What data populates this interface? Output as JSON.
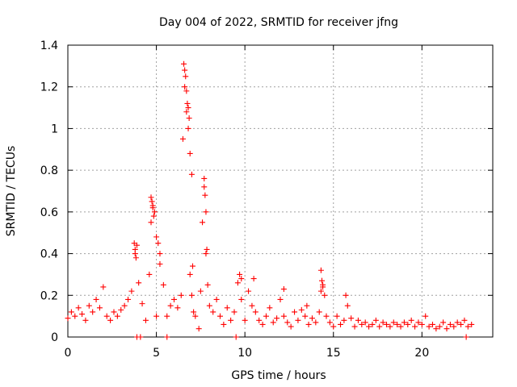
{
  "chart_data": {
    "type": "scatter",
    "title": "Day 004 of 2022, SRMTID for receiver jfng",
    "xlabel": "GPS time / hours",
    "ylabel": "SRMTID / TECUs",
    "xlim": [
      0,
      24
    ],
    "ylim": [
      0,
      1.4
    ],
    "xticks": [
      "0",
      "5",
      "10",
      "15",
      "20"
    ],
    "yticks": [
      "0",
      "0.2",
      "0.4",
      "0.6",
      "0.8",
      "1",
      "1.2",
      "1.4"
    ],
    "grid": true,
    "marker": "+",
    "color": "#ff0000",
    "series": [
      {
        "name": "SRMTID",
        "x": [
          0.0,
          0.2,
          0.4,
          0.6,
          0.8,
          1.0,
          1.2,
          1.4,
          1.6,
          1.8,
          2.0,
          2.2,
          2.4,
          2.6,
          2.8,
          3.0,
          3.2,
          3.4,
          3.6,
          3.8,
          3.9,
          4.0,
          4.2,
          4.4,
          4.6,
          4.7,
          4.8,
          4.9,
          5.0,
          5.2,
          5.4,
          5.6,
          5.8,
          6.0,
          6.2,
          6.4,
          6.5,
          6.6,
          6.7,
          6.8,
          6.9,
          7.0,
          7.1,
          7.2,
          7.4,
          7.5,
          7.6,
          7.7,
          7.8,
          7.9,
          8.0,
          8.2,
          8.4,
          8.6,
          8.8,
          9.0,
          9.2,
          9.4,
          9.6,
          9.8,
          10.0,
          10.2,
          10.4,
          10.6,
          10.8,
          11.0,
          11.2,
          11.4,
          11.6,
          11.8,
          12.0,
          12.2,
          12.4,
          12.6,
          12.8,
          13.0,
          13.2,
          13.4,
          13.6,
          13.8,
          14.0,
          14.2,
          14.3,
          14.4,
          14.5,
          14.6,
          14.8,
          15.0,
          15.2,
          15.4,
          15.6,
          15.8,
          16.0,
          16.2,
          16.4,
          16.6,
          16.8,
          17.0,
          17.2,
          17.4,
          17.6,
          17.8,
          18.0,
          18.2,
          18.4,
          18.6,
          18.8,
          19.0,
          19.2,
          19.4,
          19.6,
          19.8,
          20.0,
          20.2,
          20.4,
          20.6,
          20.8,
          21.0,
          21.2,
          21.4,
          21.6,
          21.8,
          22.0,
          22.2,
          22.4,
          22.6,
          22.8,
          3.9,
          4.1,
          5.6,
          9.5,
          22.5,
          6.55,
          6.6,
          6.65,
          6.7,
          6.75,
          6.8,
          6.85,
          6.9,
          7.0,
          7.05,
          7.7,
          7.75,
          7.8,
          7.85,
          4.7,
          4.75,
          4.8,
          4.85,
          3.75,
          3.8,
          3.85,
          14.3,
          14.35,
          14.4,
          5.0,
          5.1,
          5.2,
          9.7,
          9.8,
          10.5,
          12.2,
          13.5,
          15.7
        ],
        "y": [
          0.09,
          0.12,
          0.1,
          0.14,
          0.11,
          0.08,
          0.15,
          0.12,
          0.18,
          0.14,
          0.24,
          0.1,
          0.08,
          0.12,
          0.1,
          0.13,
          0.15,
          0.18,
          0.22,
          0.4,
          0.44,
          0.26,
          0.16,
          0.08,
          0.3,
          0.55,
          0.63,
          0.6,
          0.1,
          0.35,
          0.25,
          0.1,
          0.15,
          0.18,
          0.14,
          0.2,
          0.95,
          1.2,
          1.08,
          1.0,
          0.3,
          0.2,
          0.12,
          0.1,
          0.04,
          0.22,
          0.55,
          0.72,
          0.4,
          0.25,
          0.15,
          0.12,
          0.18,
          0.1,
          0.06,
          0.14,
          0.08,
          0.12,
          0.26,
          0.18,
          0.08,
          0.22,
          0.15,
          0.12,
          0.08,
          0.06,
          0.1,
          0.14,
          0.07,
          0.09,
          0.18,
          0.1,
          0.07,
          0.05,
          0.12,
          0.08,
          0.13,
          0.1,
          0.06,
          0.09,
          0.07,
          0.12,
          0.22,
          0.25,
          0.2,
          0.1,
          0.07,
          0.05,
          0.1,
          0.06,
          0.08,
          0.15,
          0.09,
          0.05,
          0.08,
          0.06,
          0.07,
          0.05,
          0.06,
          0.08,
          0.05,
          0.07,
          0.06,
          0.05,
          0.07,
          0.06,
          0.05,
          0.07,
          0.06,
          0.08,
          0.05,
          0.07,
          0.06,
          0.1,
          0.05,
          0.06,
          0.04,
          0.05,
          0.07,
          0.04,
          0.06,
          0.05,
          0.07,
          0.06,
          0.08,
          0.05,
          0.06,
          0.0,
          0.0,
          0.0,
          0.0,
          0.0,
          1.31,
          1.28,
          1.25,
          1.18,
          1.12,
          1.1,
          1.05,
          0.88,
          0.78,
          0.34,
          0.76,
          0.68,
          0.6,
          0.42,
          0.67,
          0.65,
          0.62,
          0.58,
          0.45,
          0.42,
          0.38,
          0.32,
          0.27,
          0.24,
          0.48,
          0.45,
          0.4,
          0.3,
          0.28,
          0.28,
          0.23,
          0.15,
          0.2
        ]
      }
    ]
  }
}
